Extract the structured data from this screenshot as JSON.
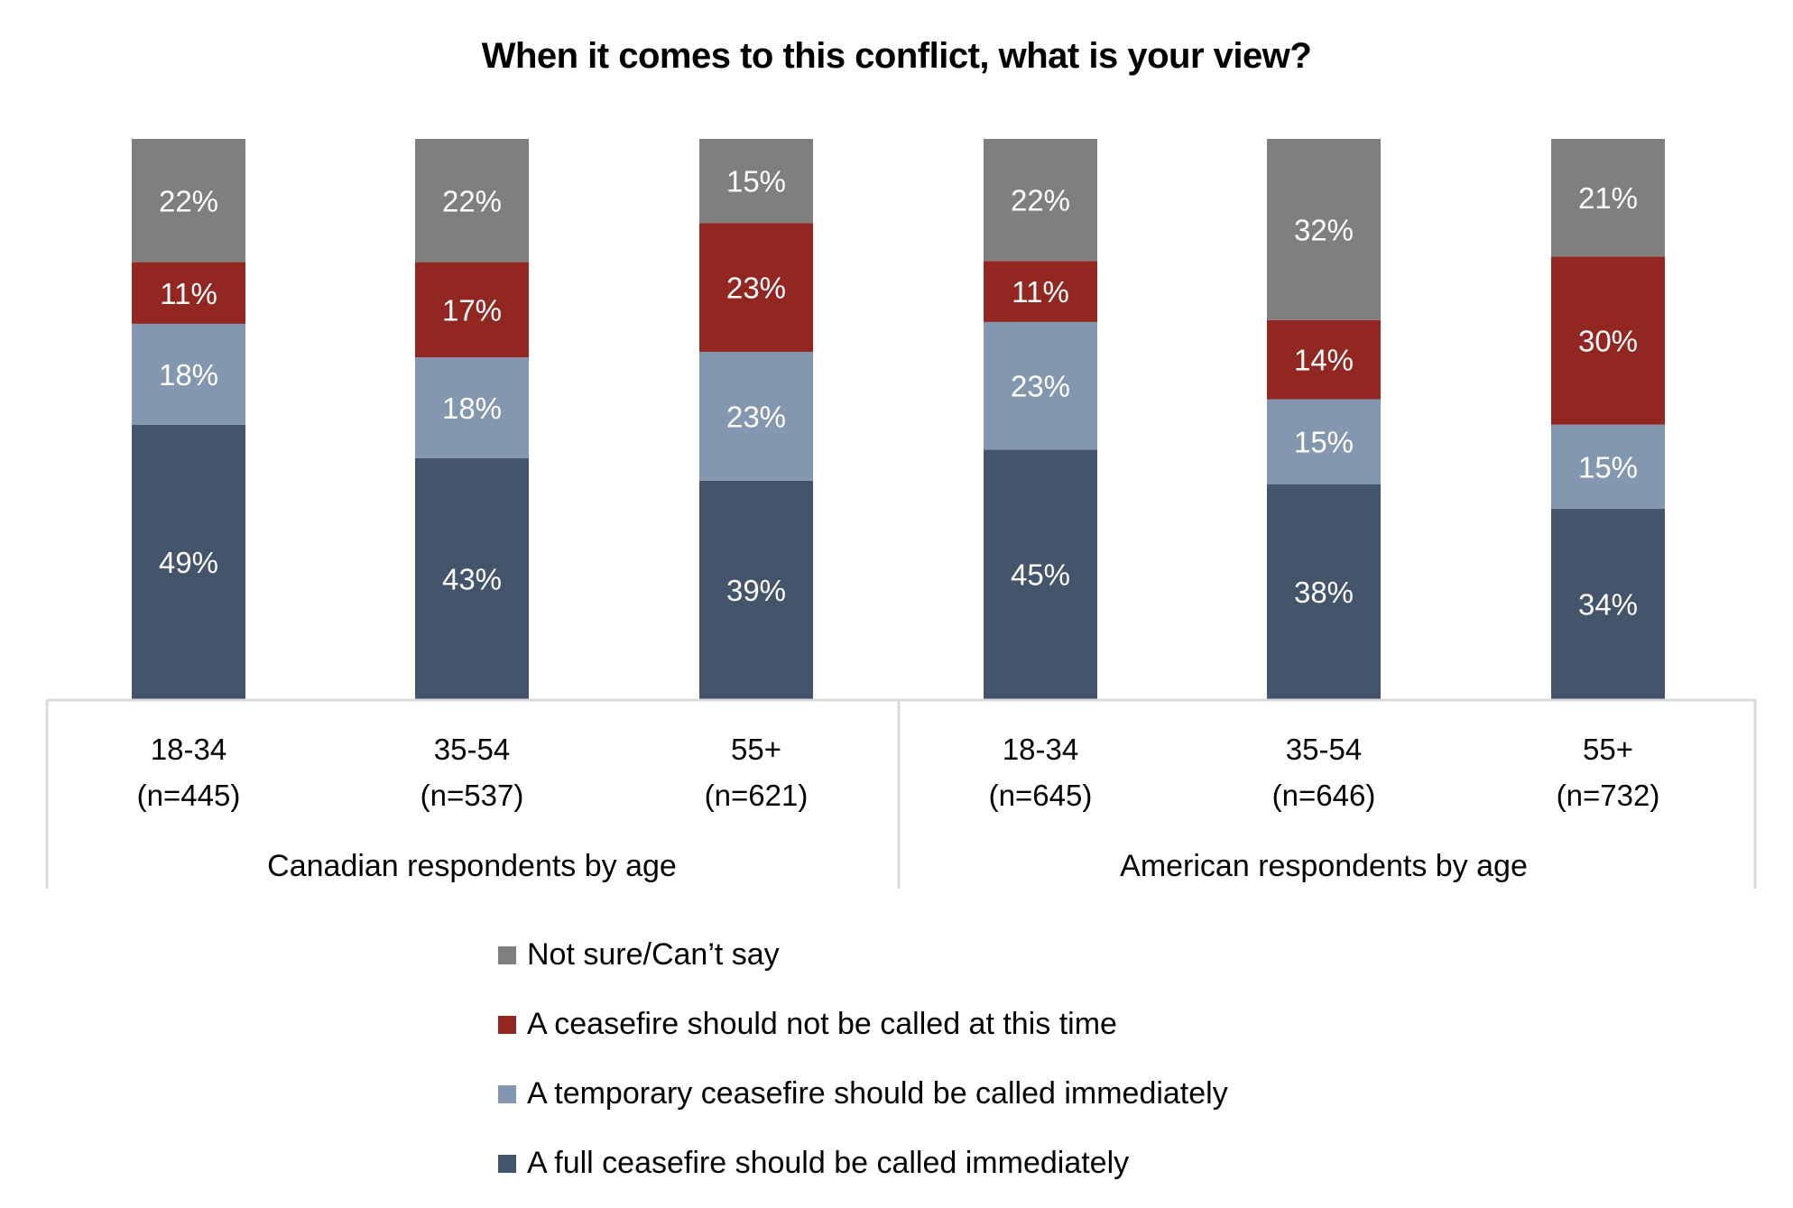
{
  "chart_data": {
    "type": "bar",
    "stacked": true,
    "title": "When it comes to this conflict, what is your view?",
    "xlabel": "",
    "ylabel": "",
    "ylim": [
      0,
      100
    ],
    "grid": false,
    "value_format": "percent",
    "legend_position": "bottom",
    "groups": [
      {
        "label": "Canadian respondents by age",
        "categories": [
          0,
          1,
          2
        ]
      },
      {
        "label": "American respondents by age",
        "categories": [
          3,
          4,
          5
        ]
      }
    ],
    "categories": [
      {
        "label": "18-34",
        "n": "(n=445)"
      },
      {
        "label": "35-54",
        "n": "(n=537)"
      },
      {
        "label": "55+",
        "n": "(n=621)"
      },
      {
        "label": "18-34",
        "n": "(n=645)"
      },
      {
        "label": "35-54",
        "n": "(n=646)"
      },
      {
        "label": "55+",
        "n": "(n=732)"
      }
    ],
    "series": [
      {
        "name": "A full ceasefire should be called immediately",
        "color": "#44546a",
        "values": [
          49,
          43,
          39,
          45,
          38,
          34
        ]
      },
      {
        "name": "A temporary ceasefire should be called immediately",
        "color": "#8497b0",
        "values": [
          18,
          18,
          23,
          23,
          15,
          15
        ]
      },
      {
        "name": "A ceasefire should not be called at this time",
        "color": "#922621",
        "values": [
          11,
          17,
          23,
          11,
          14,
          30
        ]
      },
      {
        "name": "Not sure/Can’t say",
        "color": "#7f7f7f",
        "values": [
          22,
          22,
          15,
          22,
          32,
          21
        ]
      }
    ],
    "legend": [
      {
        "name": "Not sure/Can’t say",
        "color": "#7f7f7f"
      },
      {
        "name": "A ceasefire should not be called at this time",
        "color": "#922621"
      },
      {
        "name": "A temporary ceasefire should be called immediately",
        "color": "#8497b0"
      },
      {
        "name": "A full ceasefire should be called immediately",
        "color": "#44546a"
      }
    ]
  }
}
